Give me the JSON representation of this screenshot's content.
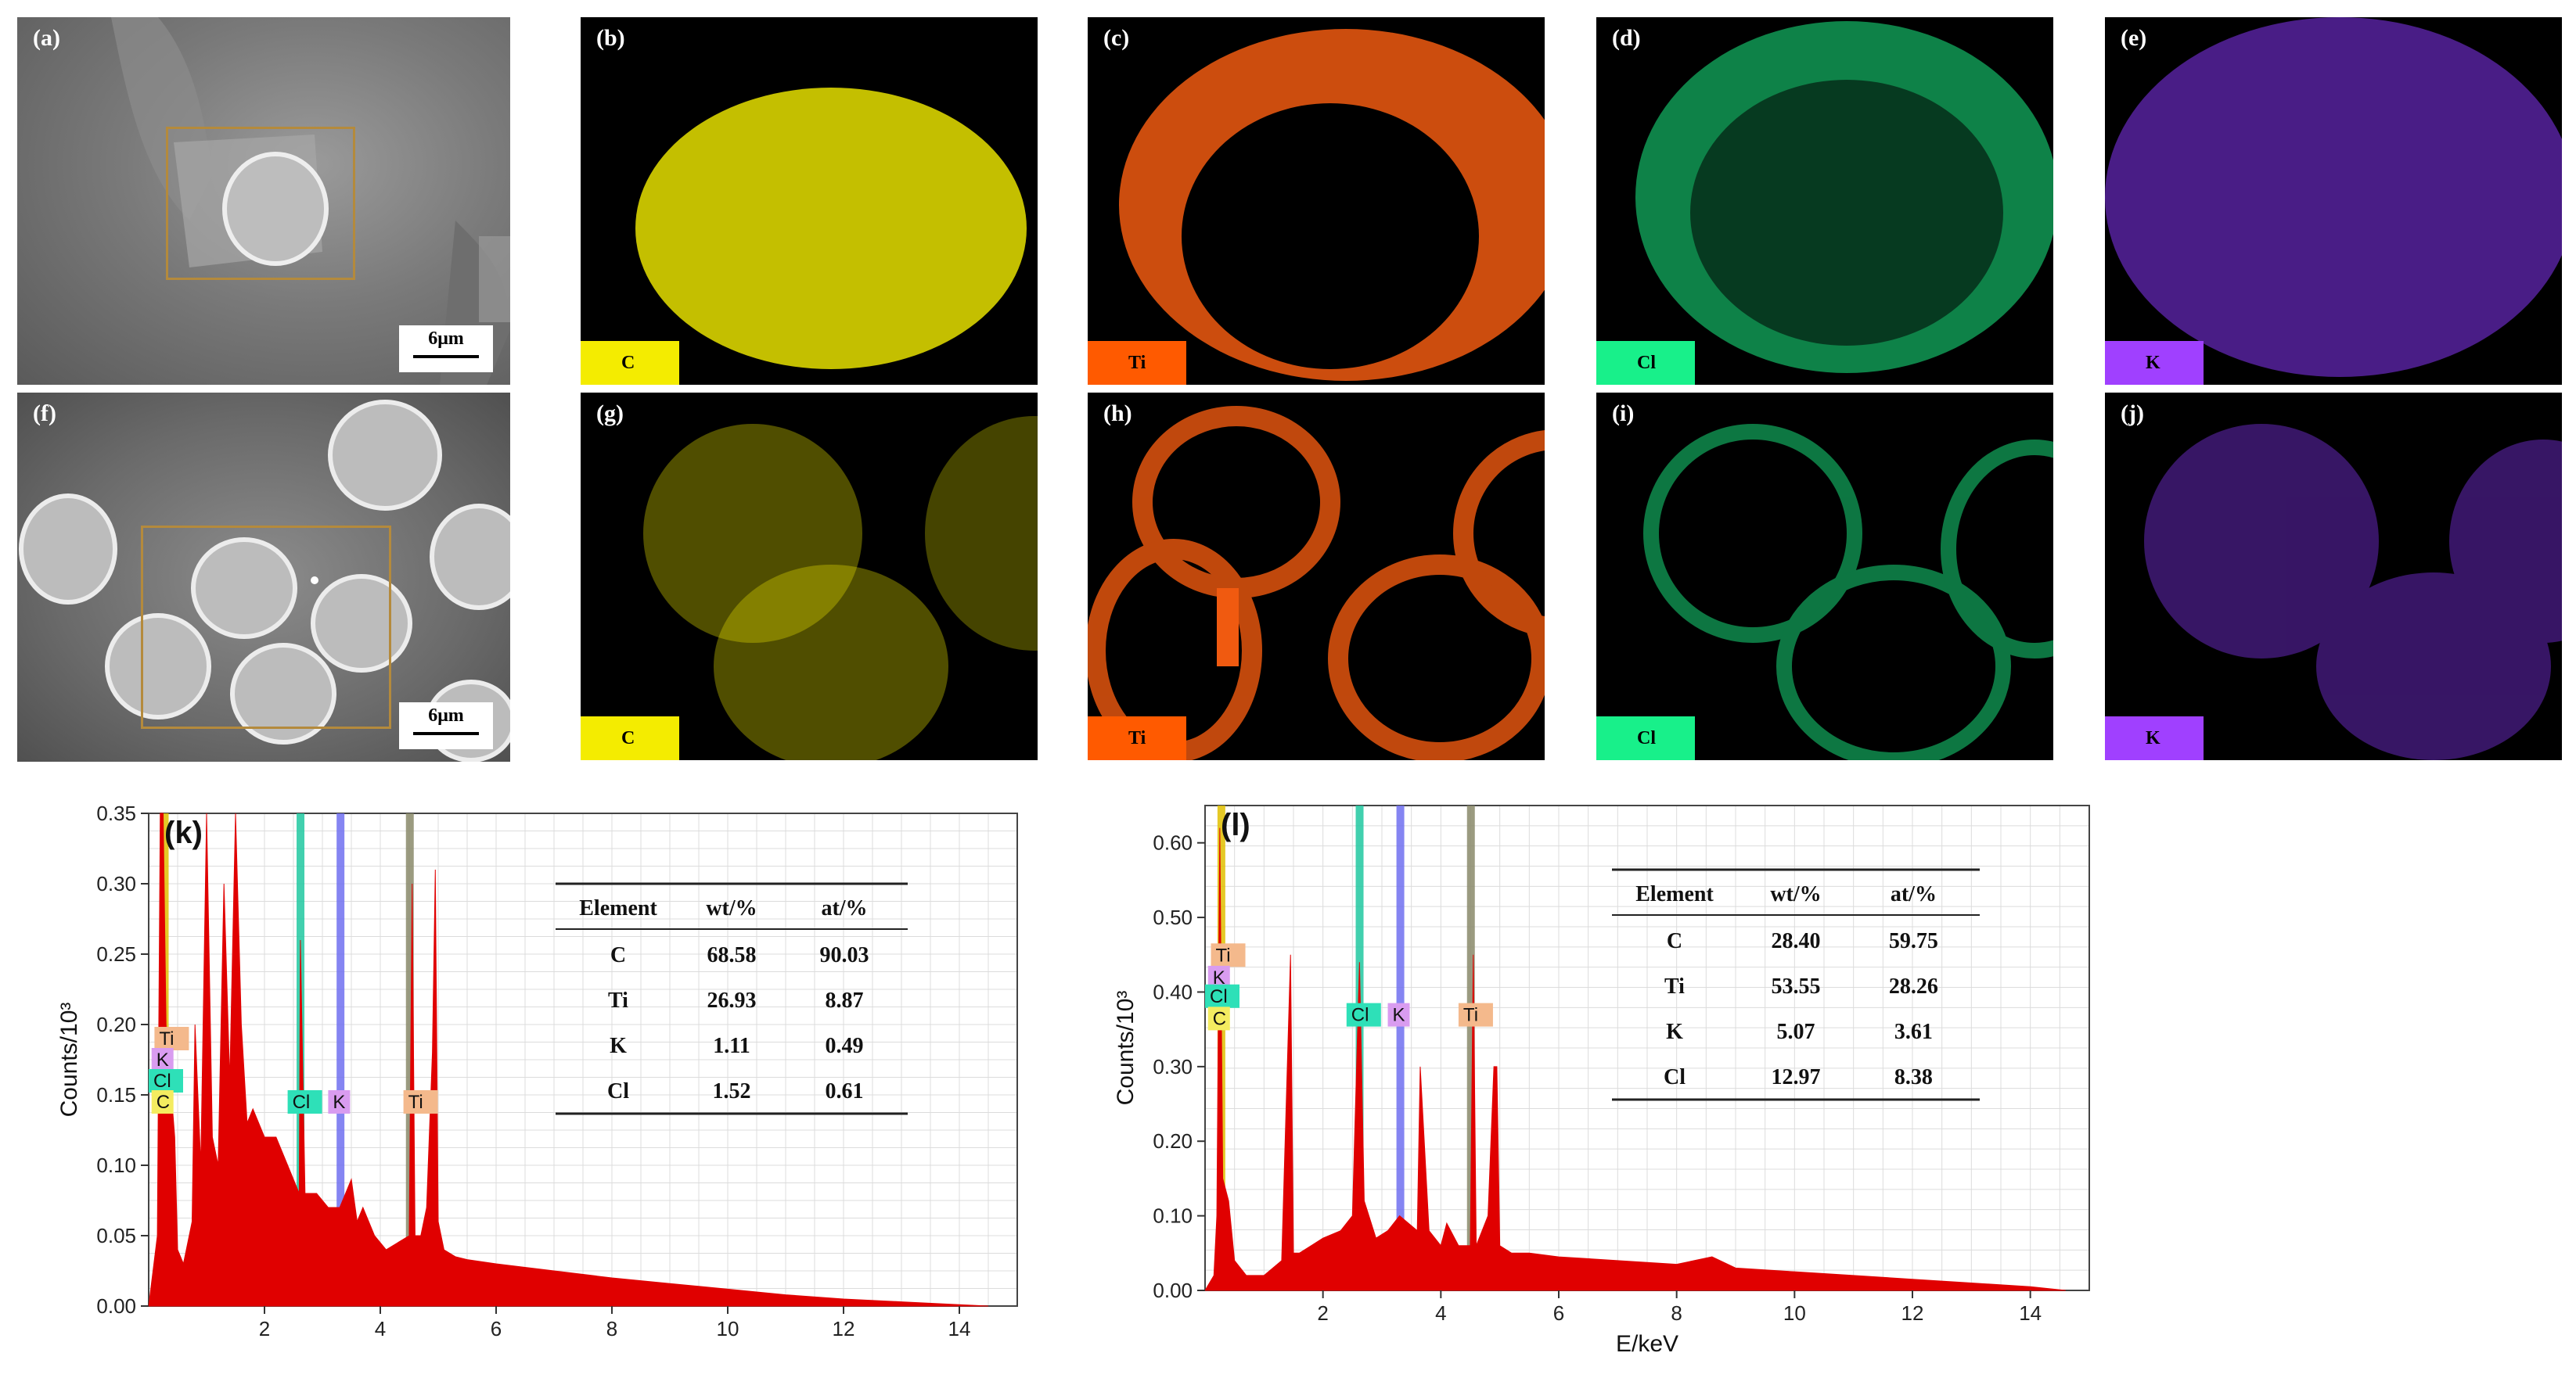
{
  "sem_panels": [
    {
      "label": "(a)",
      "scale_bar": "6μm"
    },
    {
      "label": "(f)",
      "scale_bar": "6μm"
    }
  ],
  "map_panels": [
    {
      "label": "(b)",
      "element": "C",
      "color": "#e6e000",
      "tag_color": "#f4ec00",
      "tag_text_color": "#000000"
    },
    {
      "label": "(c)",
      "element": "Ti",
      "color": "#f05a10",
      "tag_color": "#ff5a00",
      "tag_text_color": "#000000"
    },
    {
      "label": "(d)",
      "element": "Cl",
      "color": "#18d878",
      "tag_color": "#18f08a",
      "tag_text_color": "#000000"
    },
    {
      "label": "(e)",
      "element": "K",
      "color": "#7a30e0",
      "tag_color": "#a040ff",
      "tag_text_color": "#000000"
    },
    {
      "label": "(g)",
      "element": "C",
      "color": "#e6e000",
      "tag_color": "#f4ec00",
      "tag_text_color": "#000000"
    },
    {
      "label": "(h)",
      "element": "Ti",
      "color": "#f05a10",
      "tag_color": "#ff5a00",
      "tag_text_color": "#000000"
    },
    {
      "label": "(i)",
      "element": "Cl",
      "color": "#18d878",
      "tag_color": "#18f08a",
      "tag_text_color": "#000000"
    },
    {
      "label": "(j)",
      "element": "K",
      "color": "#7a30e0",
      "tag_color": "#a040ff",
      "tag_text_color": "#000000"
    }
  ],
  "chart_data": [
    {
      "type": "area",
      "panel_label": "(k)",
      "ylabel": "Counts/10³",
      "xlabel": "",
      "xlim": [
        0,
        15
      ],
      "ylim": [
        0,
        0.35
      ],
      "xticks": [
        "2",
        "4",
        "6",
        "8",
        "10",
        "12",
        "14"
      ],
      "yticks": [
        "0.00",
        "0.05",
        "0.10",
        "0.15",
        "0.20",
        "0.25",
        "0.30",
        "0.35"
      ],
      "fill_color": "#e00000",
      "spectrum": {
        "x": [
          0.0,
          0.15,
          0.2,
          0.25,
          0.3,
          0.45,
          0.5,
          0.6,
          0.75,
          0.8,
          0.9,
          1.0,
          1.1,
          1.2,
          1.3,
          1.4,
          1.5,
          1.6,
          1.7,
          1.8,
          2.0,
          2.2,
          2.4,
          2.6,
          2.62,
          2.7,
          2.9,
          3.1,
          3.3,
          3.5,
          3.6,
          3.7,
          3.9,
          4.1,
          4.3,
          4.5,
          4.55,
          4.6,
          4.7,
          4.8,
          4.9,
          4.95,
          5.0,
          5.1,
          5.3,
          5.5,
          6.0,
          7.0,
          8.0,
          9.0,
          10.0,
          11.0,
          12.0,
          13.0,
          14.0,
          14.5
        ],
        "y": [
          0.0,
          0.05,
          0.35,
          0.35,
          0.2,
          0.12,
          0.04,
          0.03,
          0.06,
          0.2,
          0.1,
          0.35,
          0.12,
          0.1,
          0.3,
          0.16,
          0.35,
          0.2,
          0.13,
          0.14,
          0.12,
          0.12,
          0.1,
          0.08,
          0.26,
          0.08,
          0.08,
          0.07,
          0.07,
          0.09,
          0.06,
          0.07,
          0.05,
          0.04,
          0.045,
          0.05,
          0.3,
          0.05,
          0.05,
          0.07,
          0.18,
          0.31,
          0.06,
          0.04,
          0.035,
          0.033,
          0.03,
          0.025,
          0.02,
          0.016,
          0.012,
          0.008,
          0.005,
          0.003,
          0.001,
          0.0
        ]
      },
      "element_lines": [
        {
          "element": "C",
          "energy": 0.277,
          "color": "#e0c000"
        },
        {
          "element": "Cl",
          "energy": 2.622,
          "color": "#20c8a0"
        },
        {
          "element": "K",
          "energy": 3.313,
          "color": "#7070f0"
        },
        {
          "element": "Ti",
          "energy": 4.51,
          "color": "#8a8a6a"
        }
      ],
      "peak_labels": [
        {
          "text": "Ti",
          "x": 0.1,
          "y": 0.185
        },
        {
          "text": "K",
          "x": 0.05,
          "y": 0.17
        },
        {
          "text": "Cl",
          "x": 0.0,
          "y": 0.155
        },
        {
          "text": "C",
          "x": 0.05,
          "y": 0.14
        },
        {
          "text": "Cl",
          "x": 2.4,
          "y": 0.14
        },
        {
          "text": "K",
          "x": 3.1,
          "y": 0.14
        },
        {
          "text": "Ti",
          "x": 4.4,
          "y": 0.14
        }
      ],
      "table": {
        "headers": [
          "Element",
          "wt/%",
          "at/%"
        ],
        "rows": [
          [
            "C",
            "68.58",
            "90.03"
          ],
          [
            "Ti",
            "26.93",
            "8.87"
          ],
          [
            "K",
            "1.11",
            "0.49"
          ],
          [
            "Cl",
            "1.52",
            "0.61"
          ]
        ]
      }
    },
    {
      "type": "area",
      "panel_label": "(l)",
      "ylabel": "Counts/10³",
      "xlabel": "E/keV",
      "xlim": [
        0,
        15
      ],
      "ylim": [
        0,
        0.65
      ],
      "xticks": [
        "2",
        "4",
        "6",
        "8",
        "10",
        "12",
        "14"
      ],
      "yticks": [
        "0.00",
        "0.10",
        "0.20",
        "0.30",
        "0.40",
        "0.50",
        "0.60"
      ],
      "fill_color": "#e00000",
      "spectrum": {
        "x": [
          0.0,
          0.15,
          0.2,
          0.25,
          0.3,
          0.4,
          0.5,
          0.7,
          1.0,
          1.3,
          1.45,
          1.5,
          1.6,
          1.8,
          2.0,
          2.3,
          2.5,
          2.62,
          2.7,
          2.9,
          3.1,
          3.3,
          3.6,
          3.65,
          3.8,
          4.0,
          4.1,
          4.3,
          4.5,
          4.55,
          4.6,
          4.8,
          4.9,
          4.95,
          5.0,
          5.2,
          5.5,
          6.0,
          7.0,
          8.0,
          8.6,
          9.0,
          10.0,
          11.0,
          12.0,
          13.0,
          14.0,
          14.6
        ],
        "y": [
          0.0,
          0.02,
          0.1,
          0.62,
          0.15,
          0.12,
          0.04,
          0.02,
          0.02,
          0.04,
          0.45,
          0.05,
          0.05,
          0.06,
          0.07,
          0.08,
          0.1,
          0.44,
          0.12,
          0.07,
          0.08,
          0.1,
          0.08,
          0.3,
          0.08,
          0.06,
          0.09,
          0.06,
          0.06,
          0.45,
          0.06,
          0.1,
          0.3,
          0.3,
          0.06,
          0.05,
          0.05,
          0.045,
          0.04,
          0.035,
          0.045,
          0.03,
          0.025,
          0.02,
          0.015,
          0.01,
          0.005,
          0.0
        ]
      },
      "element_lines": [
        {
          "element": "C",
          "energy": 0.277,
          "color": "#e0c000"
        },
        {
          "element": "Cl",
          "energy": 2.622,
          "color": "#20c8a0"
        },
        {
          "element": "K",
          "energy": 3.313,
          "color": "#7070f0"
        },
        {
          "element": "Ti",
          "energy": 4.51,
          "color": "#8a8a6a"
        }
      ],
      "peak_labels": [
        {
          "text": "Ti",
          "x": 0.1,
          "y": 0.44
        },
        {
          "text": "K",
          "x": 0.05,
          "y": 0.41
        },
        {
          "text": "Cl",
          "x": 0.0,
          "y": 0.385
        },
        {
          "text": "C",
          "x": 0.05,
          "y": 0.355
        },
        {
          "text": "Cl",
          "x": 2.4,
          "y": 0.36
        },
        {
          "text": "K",
          "x": 3.1,
          "y": 0.36
        },
        {
          "text": "Ti",
          "x": 4.3,
          "y": 0.36
        }
      ],
      "table": {
        "headers": [
          "Element",
          "wt/%",
          "at/%"
        ],
        "rows": [
          [
            "C",
            "28.40",
            "59.75"
          ],
          [
            "Ti",
            "53.55",
            "28.26"
          ],
          [
            "K",
            "5.07",
            "3.61"
          ],
          [
            "Cl",
            "12.97",
            "8.38"
          ]
        ]
      }
    }
  ]
}
